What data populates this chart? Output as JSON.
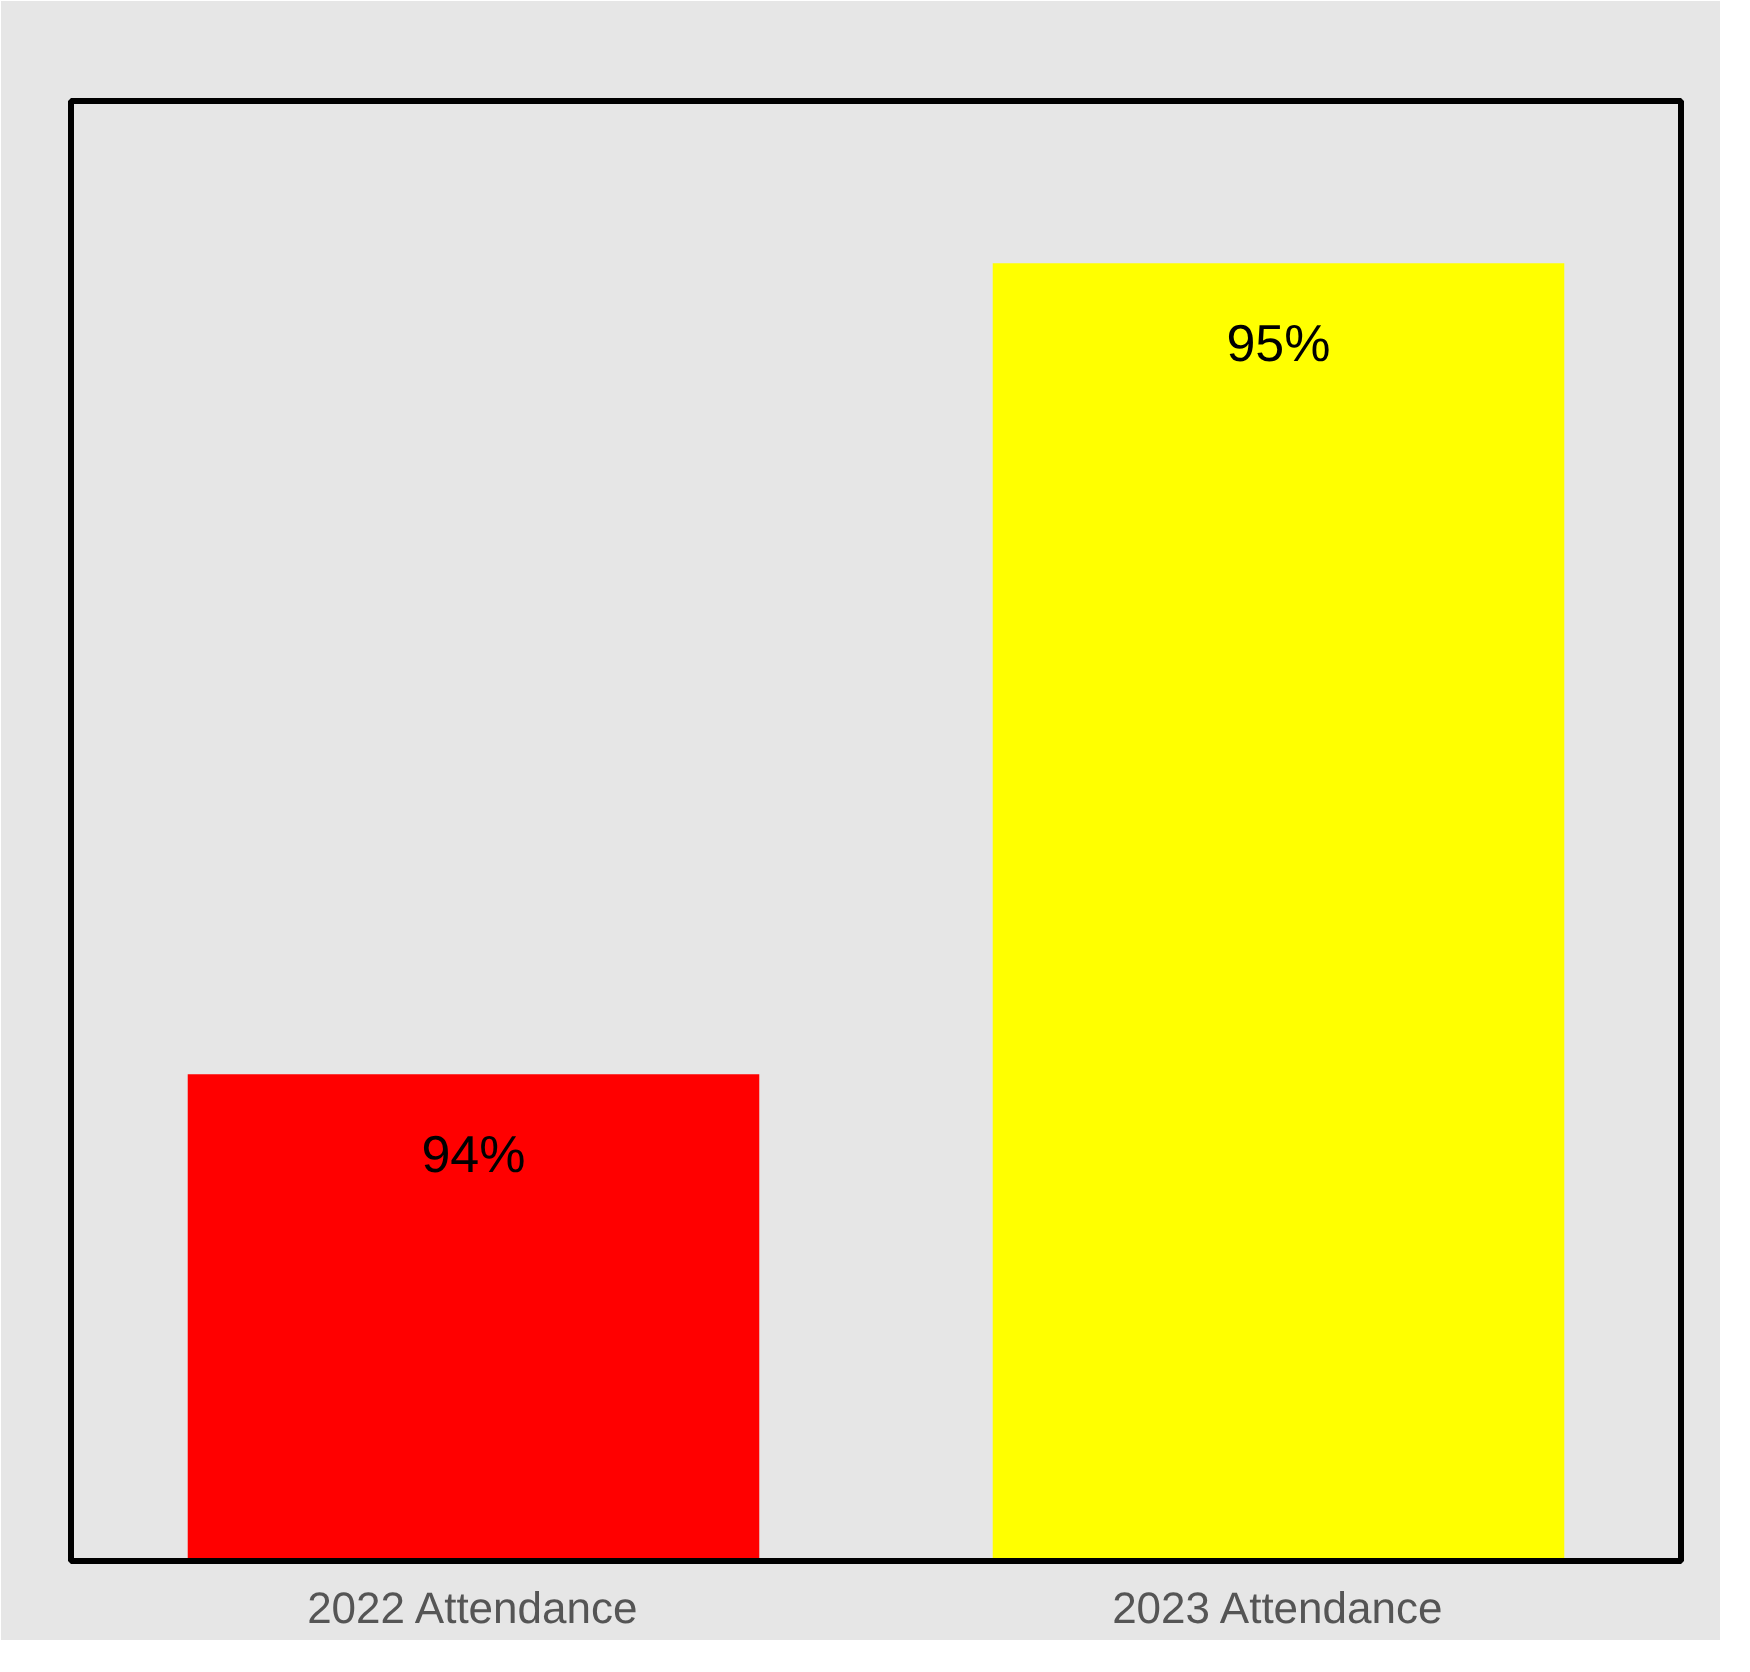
{
  "chart_data": {
    "type": "bar",
    "categories": [
      "2022 Attendance",
      "2023 Attendance"
    ],
    "values": [
      94,
      95
    ],
    "colors": [
      "#ff0000",
      "#ffff00"
    ],
    "ylim": [
      93.4,
      95.2
    ],
    "data_labels": true,
    "value_labels": [
      "94%",
      "95%"
    ],
    "grid": false,
    "tick_labels": "x"
  }
}
